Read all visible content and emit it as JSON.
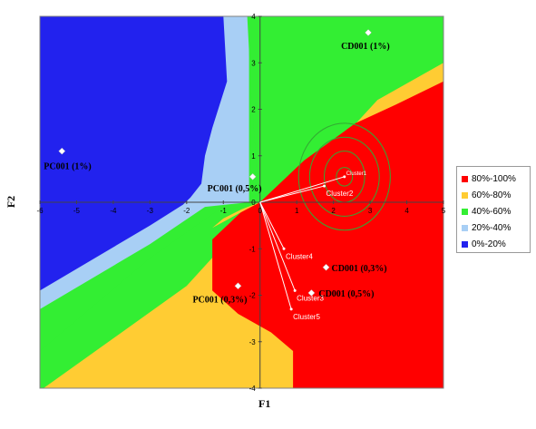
{
  "chart_data": {
    "type": "scatter",
    "xlabel": "F1",
    "ylabel": "F2",
    "xlim": [
      -6,
      5
    ],
    "ylim": [
      -4,
      4
    ],
    "xticks": [
      -6,
      -5,
      -4,
      -3,
      -2,
      -1,
      0,
      1,
      2,
      3,
      4,
      5
    ],
    "yticks": [
      -4,
      -3,
      -2,
      -1,
      0,
      1,
      2,
      3,
      4
    ],
    "grid": false,
    "legend_position": "right",
    "background_regions": {
      "description_levels": [
        "80%-100%",
        "60%-80%",
        "40%-60%",
        "20%-40%",
        "0%-20%"
      ],
      "colors": {
        "80%-100%": "#ff0000",
        "60%-80%": "#ffcc33",
        "40%-60%": "#33ee33",
        "20%-40%": "#a8cff5",
        "0%-20%": "#2222ee"
      }
    },
    "legend": [
      {
        "label": "80%-100%",
        "color": "#ff0000"
      },
      {
        "label": "60%-80%",
        "color": "#ffcc33"
      },
      {
        "label": "40%-60%",
        "color": "#33ee33"
      },
      {
        "label": "20%-40%",
        "color": "#a8cff5"
      },
      {
        "label": "0%-20%",
        "color": "#2222ee"
      }
    ],
    "points": [
      {
        "label": "CD001 (1%)",
        "x": 2.95,
        "y": 3.65
      },
      {
        "label": "PC001 (1%)",
        "x": -5.4,
        "y": 1.1
      },
      {
        "label": "PC001 (0,5%)",
        "x": -0.2,
        "y": 0.55
      },
      {
        "label": "CD001 (0,3%)",
        "x": 1.8,
        "y": -1.4
      },
      {
        "label": "CD001 (0,5%)",
        "x": 1.4,
        "y": -1.95
      },
      {
        "label": "PC001 (0,3%)",
        "x": -0.6,
        "y": -1.8
      }
    ],
    "clusters": [
      {
        "label": "Cluster1",
        "x": 2.3,
        "y": 0.55
      },
      {
        "label": "Cluster2",
        "x": 1.75,
        "y": 0.35
      },
      {
        "label": "Cluster4",
        "x": 0.65,
        "y": -1.0
      },
      {
        "label": "Cluster3",
        "x": 0.95,
        "y": -1.9
      },
      {
        "label": "Cluster5",
        "x": 0.85,
        "y": -2.3
      }
    ],
    "contour_center": {
      "x": 2.3,
      "y": 0.55
    },
    "contour_radii": [
      {
        "rx": 0.22,
        "ry": 0.2
      },
      {
        "rx": 0.55,
        "ry": 0.55
      },
      {
        "rx": 0.95,
        "ry": 0.85
      },
      {
        "rx": 1.25,
        "ry": 1.15
      }
    ]
  }
}
